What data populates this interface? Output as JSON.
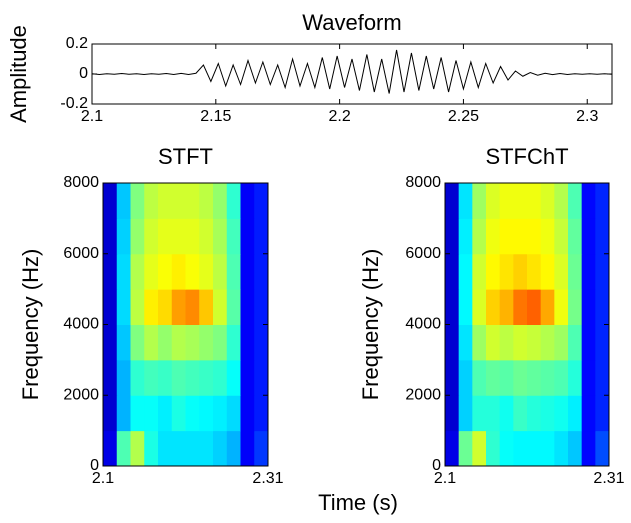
{
  "xlabel": "Time (s)",
  "chart_data": [
    {
      "type": "line",
      "title": "Waveform",
      "ylabel": "Amplitude",
      "color": "#000000",
      "grid": false,
      "xlim": [
        2.1,
        2.31
      ],
      "xticks": [
        2.1,
        2.15,
        2.2,
        2.25,
        2.3
      ],
      "ylim": [
        -0.2,
        0.2
      ],
      "yticks": [
        -0.2,
        0,
        0.2
      ],
      "x": [
        2.1,
        2.103,
        2.106,
        2.109,
        2.112,
        2.115,
        2.118,
        2.121,
        2.124,
        2.127,
        2.13,
        2.133,
        2.136,
        2.139,
        2.142,
        2.145,
        2.148,
        2.151,
        2.154,
        2.157,
        2.16,
        2.163,
        2.166,
        2.169,
        2.172,
        2.175,
        2.178,
        2.181,
        2.184,
        2.187,
        2.19,
        2.193,
        2.196,
        2.199,
        2.202,
        2.205,
        2.208,
        2.211,
        2.214,
        2.217,
        2.22,
        2.223,
        2.226,
        2.229,
        2.232,
        2.235,
        2.238,
        2.241,
        2.244,
        2.247,
        2.25,
        2.253,
        2.256,
        2.259,
        2.262,
        2.265,
        2.268,
        2.271,
        2.274,
        2.277,
        2.28,
        2.283,
        2.286,
        2.289,
        2.292,
        2.295,
        2.298,
        2.301,
        2.304,
        2.307,
        2.31
      ],
      "values": [
        0.002,
        -0.003,
        0.002,
        -0.002,
        0.003,
        -0.002,
        0.002,
        -0.003,
        0.002,
        -0.002,
        0.003,
        -0.003,
        0.004,
        -0.003,
        0.005,
        0.06,
        -0.05,
        0.07,
        -0.08,
        0.06,
        -0.07,
        0.09,
        -0.06,
        0.08,
        -0.07,
        0.06,
        -0.09,
        0.1,
        -0.08,
        0.07,
        -0.09,
        0.11,
        -0.1,
        0.12,
        -0.09,
        0.1,
        -0.11,
        0.13,
        -0.12,
        0.1,
        -0.13,
        0.16,
        -0.12,
        0.14,
        -0.11,
        0.12,
        -0.1,
        0.11,
        -0.12,
        0.09,
        -0.1,
        0.08,
        -0.09,
        0.07,
        -0.06,
        0.05,
        -0.04,
        0.02,
        -0.015,
        0.01,
        -0.008,
        0.005,
        -0.004,
        0.003,
        -0.003,
        0.002,
        -0.002,
        0.002,
        -0.002,
        0.002,
        -0.002
      ]
    },
    {
      "type": "heatmap",
      "title": "STFT",
      "ylabel": "Frequency (Hz)",
      "colormap": "jet",
      "xlim": [
        2.1,
        2.31
      ],
      "xticks": [
        2.1,
        2.31
      ],
      "ylim": [
        0,
        8000
      ],
      "yticks": [
        0,
        2000,
        4000,
        6000,
        8000
      ],
      "xbins": [
        2.1,
        2.1175,
        2.135,
        2.1525,
        2.17,
        2.1875,
        2.205,
        2.2225,
        2.24,
        2.2575,
        2.275,
        2.2925,
        2.31
      ],
      "ybins": [
        0,
        1000,
        2000,
        3000,
        4000,
        5000,
        6000,
        7000,
        8000
      ],
      "z": [
        [
          0.1,
          0.45,
          0.55,
          0.4,
          0.35,
          0.35,
          0.35,
          0.35,
          0.33,
          0.3,
          0.12,
          0.18
        ],
        [
          0.08,
          0.3,
          0.38,
          0.38,
          0.36,
          0.4,
          0.38,
          0.37,
          0.36,
          0.34,
          0.12,
          0.15
        ],
        [
          0.08,
          0.3,
          0.42,
          0.44,
          0.43,
          0.45,
          0.44,
          0.43,
          0.42,
          0.38,
          0.12,
          0.15
        ],
        [
          0.08,
          0.32,
          0.5,
          0.55,
          0.52,
          0.55,
          0.54,
          0.52,
          0.5,
          0.42,
          0.12,
          0.15
        ],
        [
          0.08,
          0.34,
          0.56,
          0.64,
          0.66,
          0.72,
          0.74,
          0.68,
          0.58,
          0.46,
          0.12,
          0.15
        ],
        [
          0.08,
          0.34,
          0.55,
          0.6,
          0.62,
          0.64,
          0.62,
          0.6,
          0.56,
          0.45,
          0.12,
          0.15
        ],
        [
          0.08,
          0.33,
          0.52,
          0.58,
          0.6,
          0.6,
          0.6,
          0.58,
          0.54,
          0.44,
          0.12,
          0.15
        ],
        [
          0.08,
          0.32,
          0.5,
          0.56,
          0.58,
          0.58,
          0.58,
          0.56,
          0.52,
          0.42,
          0.12,
          0.15
        ]
      ]
    },
    {
      "type": "heatmap",
      "title": "STFChT",
      "ylabel": "Frequency (Hz)",
      "colormap": "jet",
      "xlim": [
        2.1,
        2.31
      ],
      "xticks": [
        2.1,
        2.31
      ],
      "ylim": [
        0,
        8000
      ],
      "yticks": [
        0,
        2000,
        4000,
        6000,
        8000
      ],
      "xbins": [
        2.1,
        2.1175,
        2.135,
        2.1525,
        2.17,
        2.1875,
        2.205,
        2.2225,
        2.24,
        2.2575,
        2.275,
        2.2925,
        2.31
      ],
      "ybins": [
        0,
        1000,
        2000,
        3000,
        4000,
        5000,
        6000,
        7000,
        8000
      ],
      "z": [
        [
          0.1,
          0.48,
          0.58,
          0.42,
          0.38,
          0.37,
          0.37,
          0.37,
          0.35,
          0.32,
          0.13,
          0.2
        ],
        [
          0.08,
          0.33,
          0.41,
          0.41,
          0.39,
          0.43,
          0.41,
          0.4,
          0.39,
          0.36,
          0.13,
          0.16
        ],
        [
          0.08,
          0.33,
          0.45,
          0.47,
          0.46,
          0.48,
          0.47,
          0.46,
          0.45,
          0.41,
          0.13,
          0.16
        ],
        [
          0.08,
          0.35,
          0.53,
          0.58,
          0.56,
          0.58,
          0.57,
          0.55,
          0.53,
          0.45,
          0.13,
          0.16
        ],
        [
          0.08,
          0.37,
          0.59,
          0.67,
          0.7,
          0.76,
          0.78,
          0.71,
          0.61,
          0.49,
          0.13,
          0.16
        ],
        [
          0.08,
          0.37,
          0.58,
          0.63,
          0.65,
          0.67,
          0.65,
          0.63,
          0.59,
          0.48,
          0.13,
          0.16
        ],
        [
          0.08,
          0.36,
          0.55,
          0.61,
          0.63,
          0.63,
          0.63,
          0.61,
          0.57,
          0.47,
          0.13,
          0.16
        ],
        [
          0.08,
          0.35,
          0.53,
          0.59,
          0.61,
          0.61,
          0.61,
          0.59,
          0.55,
          0.45,
          0.13,
          0.16
        ]
      ]
    }
  ]
}
